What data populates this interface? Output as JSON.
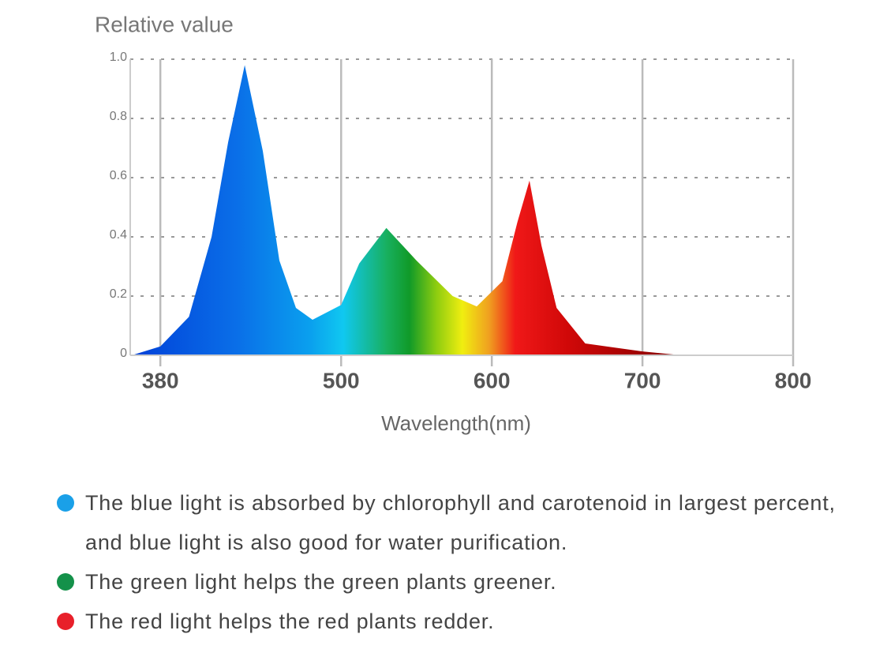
{
  "chart_data": {
    "type": "area",
    "y_label": "Relative value",
    "x_label": "Wavelength(nm)",
    "x": [
      361,
      380,
      399,
      414,
      425,
      436,
      448,
      459,
      470,
      481,
      500,
      512,
      530,
      550,
      574,
      590,
      607,
      617,
      625,
      633,
      643,
      662,
      700,
      726,
      800
    ],
    "values": [
      0,
      0.03,
      0.13,
      0.4,
      0.72,
      0.98,
      0.69,
      0.32,
      0.16,
      0.12,
      0.17,
      0.31,
      0.43,
      0.32,
      0.2,
      0.165,
      0.25,
      0.45,
      0.59,
      0.37,
      0.16,
      0.04,
      0.013,
      0,
      0
    ],
    "xlim": [
      360,
      800
    ],
    "xticks": [
      380,
      500,
      600,
      700,
      800
    ],
    "ylim": [
      0,
      1
    ],
    "yticks": [
      0,
      0.2,
      0.4,
      0.6,
      0.8,
      {
        "value": 1,
        "label": "1.0"
      }
    ],
    "grid": true
  },
  "notes": [
    {
      "color": "#1aa0e8",
      "text": "The blue light is absorbed by chlorophyll and carotenoid in largest percent, and blue light is also good for water purification."
    },
    {
      "color": "#14914a",
      "text": "The green light helps the green plants greener."
    },
    {
      "color": "#e8202a",
      "text": "The red light helps the red plants redder."
    }
  ]
}
